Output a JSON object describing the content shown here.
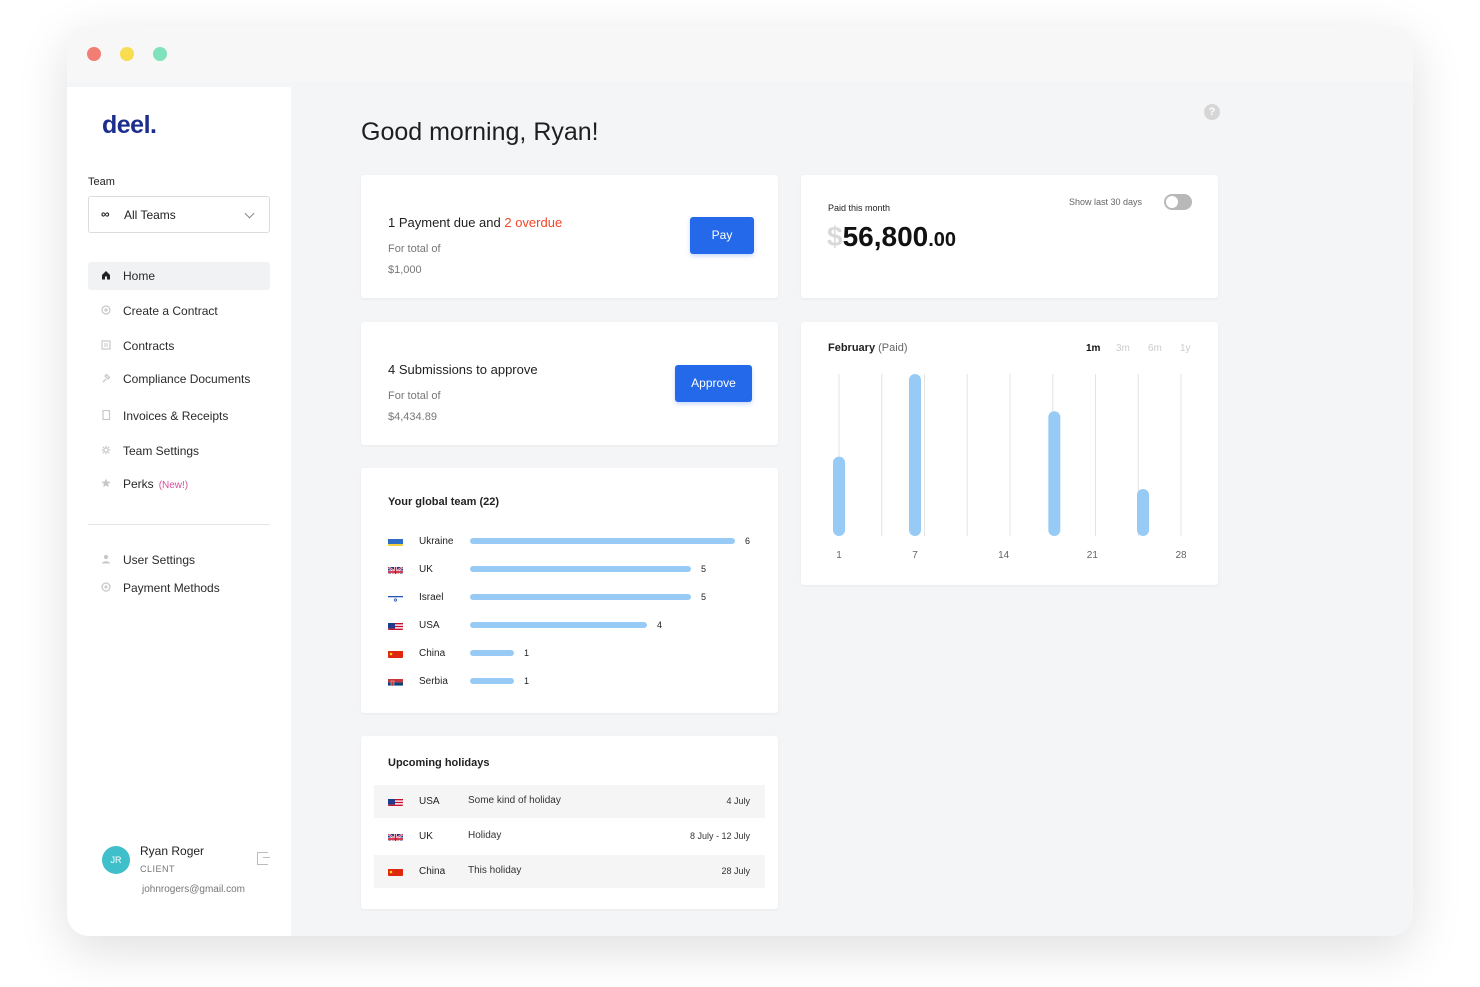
{
  "sidebar": {
    "logo": "deel.",
    "team_label": "Team",
    "team_select": {
      "icon": "infinity-icon",
      "glyph": "∞",
      "value": "All Teams"
    },
    "nav": [
      {
        "label": "Home",
        "icon": "home-icon",
        "active": true
      },
      {
        "label": "Create a Contract",
        "icon": "plus-circle-icon"
      },
      {
        "label": "Contracts",
        "icon": "document-icon"
      },
      {
        "label": "Compliance Documents",
        "icon": "pin-icon"
      },
      {
        "label": "Invoices & Receipts",
        "icon": "receipt-icon"
      },
      {
        "label": "Team Settings",
        "icon": "gear-icon"
      },
      {
        "label": "Perks",
        "icon": "star-icon",
        "badge": "(New!)"
      }
    ],
    "secondary_nav": [
      {
        "label": "User Settings",
        "icon": "user-icon"
      },
      {
        "label": "Payment Methods",
        "icon": "card-icon"
      }
    ],
    "user": {
      "initials": "JR",
      "name": "Ryan Roger",
      "role": "CLIENT",
      "email": "johnrogers@gmail.com"
    }
  },
  "header": {
    "greeting": "Good morning, Ryan!"
  },
  "payment_card": {
    "title_prefix": "1 Payment due and ",
    "overdue": "2 overdue",
    "subtitle": "For total of",
    "amount": "$1,000",
    "button": "Pay"
  },
  "submissions_card": {
    "title": "4 Submissions to approve",
    "subtitle": "For total of",
    "amount": "$4,434.89",
    "button": "Approve"
  },
  "paid_card": {
    "label": "Paid this month",
    "toggle_label": "Show last 30 days",
    "toggle_on": false,
    "currency": "$",
    "amount": "56,800",
    "cents": ".00"
  },
  "chart_card": {
    "title": "February",
    "title_suffix": "(Paid)",
    "ranges": [
      "1m",
      "3m",
      "6m",
      "1y"
    ],
    "active_range": "1m"
  },
  "chart_data": {
    "type": "bar",
    "title": "February (Paid)",
    "xlabel": "",
    "ylabel": "",
    "x_ticks": [
      1,
      7,
      14,
      21,
      28
    ],
    "xlim": [
      1,
      28
    ],
    "bars": [
      {
        "day": 1,
        "value": 0.49
      },
      {
        "day": 7,
        "value": 1.0
      },
      {
        "day": 18,
        "value": 0.77
      },
      {
        "day": 25,
        "value": 0.29
      }
    ],
    "grid": true,
    "bar_color": "#97cbf5"
  },
  "global_team": {
    "title": "Your global team (22)",
    "rows": [
      {
        "country": "Ukraine",
        "count": 6,
        "flag": "ukraine-flag"
      },
      {
        "country": "UK",
        "count": 5,
        "flag": "uk-flag"
      },
      {
        "country": "Israel",
        "count": 5,
        "flag": "israel-flag"
      },
      {
        "country": "USA",
        "count": 4,
        "flag": "usa-flag"
      },
      {
        "country": "China",
        "count": 1,
        "flag": "china-flag"
      },
      {
        "country": "Serbia",
        "count": 1,
        "flag": "serbia-flag"
      }
    ]
  },
  "holidays": {
    "title": "Upcoming holidays",
    "rows": [
      {
        "country": "USA",
        "name": "Some kind of holiday",
        "date": "4 July",
        "flag": "usa-flag"
      },
      {
        "country": "UK",
        "name": "Holiday",
        "date": "8 July - 12 July",
        "flag": "uk-flag"
      },
      {
        "country": "China",
        "name": "This holiday",
        "date": "28 July",
        "flag": "china-flag"
      }
    ]
  },
  "colors": {
    "primary": "#2469ea",
    "brand": "#1c2e8d",
    "overdue": "#f0462a",
    "bar": "#97cbf5",
    "new_badge": "#d94d9a"
  }
}
